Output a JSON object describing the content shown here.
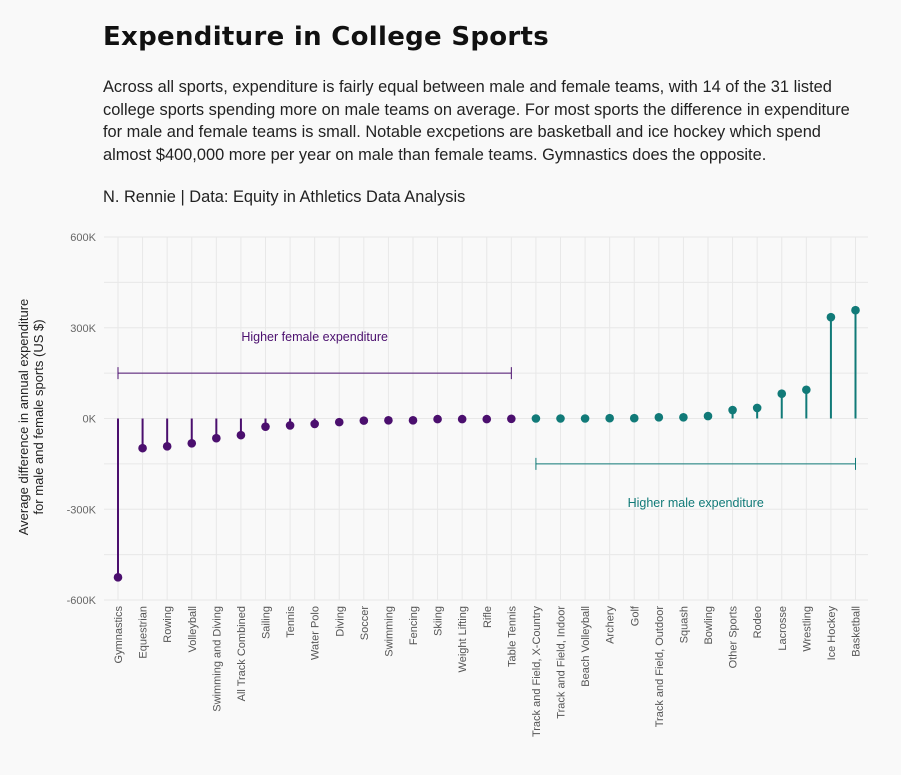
{
  "title": "Expenditure in College Sports",
  "subtitle": "Across all sports, expenditure is fairly equal between male and female teams, with 14 of the 31 listed college sports spending more on male teams on average. For most sports the difference in expenditure for male and female teams is small. Notable excpetions are basketball and ice hockey which spend almost $400,000 more per year on male than female teams. Gymnastics does the opposite.",
  "caption": "N. Rennie | Data: Equity in Athletics Data Analysis",
  "colors": {
    "female": "#4b0f6e",
    "male": "#117a78",
    "grid": "#e8e8e8",
    "background": "#f9f9f9"
  },
  "chart_data": {
    "type": "lollipop",
    "ylabel_line1": "Average difference in annual expenditure",
    "ylabel_line2": "for male and female sports (US $)",
    "ylim": [
      -600000,
      600000
    ],
    "yticks": [
      -600000,
      -300000,
      0,
      300000,
      600000
    ],
    "ytick_labels": [
      "-600K",
      "-300K",
      "0K",
      "300K",
      "600K"
    ],
    "grid": true,
    "categories": [
      "Gymnastics",
      "Equestrian",
      "Rowing",
      "Volleyball",
      "Swimming and Diving",
      "All Track Combined",
      "Sailing",
      "Tennis",
      "Water Polo",
      "Diving",
      "Soccer",
      "Swimming",
      "Fencing",
      "Skiing",
      "Weight Lifting",
      "Rifle",
      "Table Tennis",
      "Track and Field, X-Country",
      "Track and Field, Indoor",
      "Beach Volleyball",
      "Archery",
      "Golf",
      "Track and Field, Outdoor",
      "Squash",
      "Bowling",
      "Other Sports",
      "Rodeo",
      "Lacrosse",
      "Wrestling",
      "Ice Hockey",
      "Basketball"
    ],
    "values": [
      -525000,
      -98000,
      -92000,
      -82000,
      -65000,
      -55000,
      -27000,
      -23000,
      -18000,
      -12000,
      -7000,
      -6000,
      -6000,
      -2000,
      -2000,
      -2000,
      -1000,
      0,
      0,
      0,
      1000,
      1000,
      4000,
      4000,
      8000,
      28000,
      35000,
      82000,
      95000,
      335000,
      358000
    ],
    "annotations": [
      {
        "text": "Higher female expenditure",
        "group": "female",
        "from": 0,
        "to": 16,
        "y": 150000,
        "label_y": 270000
      },
      {
        "text": "Higher male expenditure",
        "group": "male",
        "from": 17,
        "to": 30,
        "y": -150000,
        "label_y": -280000
      }
    ]
  }
}
